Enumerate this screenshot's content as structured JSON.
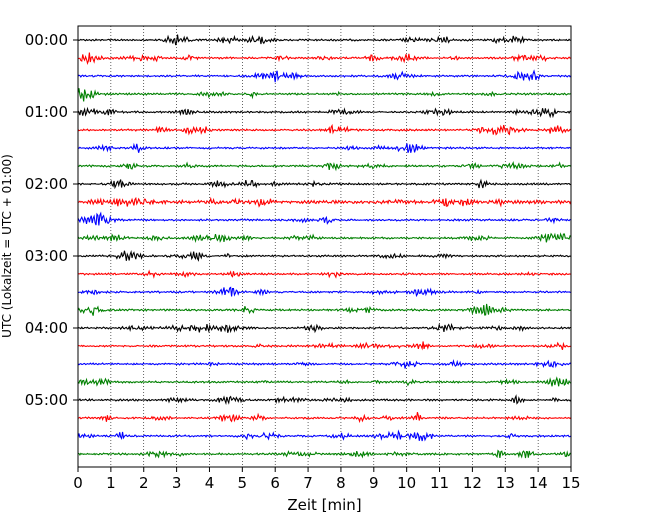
{
  "chart_data": {
    "type": "line",
    "title": "",
    "xlabel": "Zeit  [min]",
    "ylabel": "UTC (Lokalzeit = UTC + 01:00)",
    "xlim": [
      0,
      15
    ],
    "x_ticks": [
      "0",
      "1",
      "2",
      "3",
      "4",
      "5",
      "6",
      "7",
      "8",
      "9",
      "10",
      "11",
      "12",
      "13",
      "14",
      "15"
    ],
    "y_ticks": [
      "00:00",
      "01:00",
      "02:00",
      "03:00",
      "04:00",
      "05:00"
    ],
    "grid": "vertical dotted at each minute",
    "legend": "none",
    "trace_interval_min": 15,
    "trace_count": 24,
    "trace_colors": [
      "#000000",
      "#ff0000",
      "#0000ff",
      "#008000"
    ],
    "series_description": "Seismogram helicorder: 24 traces of 15 minutes each from 00:00 to 05:45 UTC"
  }
}
